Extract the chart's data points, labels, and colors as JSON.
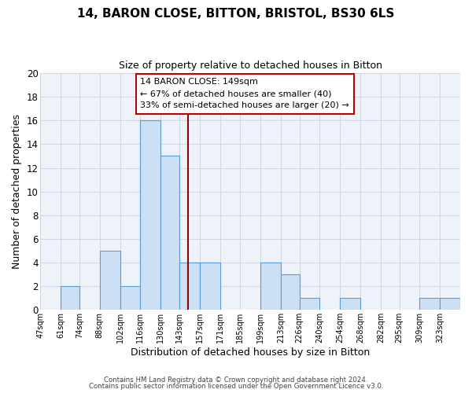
{
  "title": "14, BARON CLOSE, BITTON, BRISTOL, BS30 6LS",
  "subtitle": "Size of property relative to detached houses in Bitton",
  "xlabel": "Distribution of detached houses by size in Bitton",
  "ylabel": "Number of detached properties",
  "bin_labels": [
    "47sqm",
    "61sqm",
    "74sqm",
    "88sqm",
    "102sqm",
    "116sqm",
    "130sqm",
    "143sqm",
    "157sqm",
    "171sqm",
    "185sqm",
    "199sqm",
    "213sqm",
    "226sqm",
    "240sqm",
    "254sqm",
    "268sqm",
    "282sqm",
    "295sqm",
    "309sqm",
    "323sqm"
  ],
  "bin_edges": [
    47,
    61,
    74,
    88,
    102,
    116,
    130,
    143,
    157,
    171,
    185,
    199,
    213,
    226,
    240,
    254,
    268,
    282,
    295,
    309,
    323,
    337
  ],
  "counts": [
    0,
    2,
    0,
    5,
    2,
    16,
    13,
    4,
    4,
    0,
    0,
    4,
    3,
    1,
    0,
    1,
    0,
    0,
    0,
    1,
    1
  ],
  "bar_color": "#cce0f5",
  "bar_edge_color": "#5b9bd5",
  "vline_x": 149,
  "vline_color": "#8b0000",
  "ylim": [
    0,
    20
  ],
  "yticks": [
    0,
    2,
    4,
    6,
    8,
    10,
    12,
    14,
    16,
    18,
    20
  ],
  "annotation_title": "14 BARON CLOSE: 149sqm",
  "annotation_line1": "← 67% of detached houses are smaller (40)",
  "annotation_line2": "33% of semi-detached houses are larger (20) →",
  "annotation_box_color": "#ffffff",
  "annotation_box_edge": "#c00000",
  "footer1": "Contains HM Land Registry data © Crown copyright and database right 2024.",
  "footer2": "Contains public sector information licensed under the Open Government Licence v3.0.",
  "grid_color": "#d0d8e8",
  "background_color": "#eef2f9"
}
